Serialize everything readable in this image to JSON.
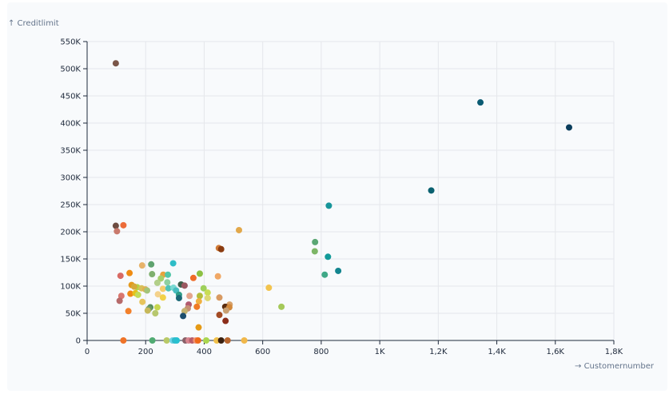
{
  "chart_data": {
    "type": "scatter",
    "title": "",
    "xlabel": "→ Customernumber",
    "ylabel": "↑ Creditlimit",
    "xlim": [
      0,
      1800
    ],
    "ylim": [
      0,
      550000
    ],
    "x_ticks": [
      0,
      200,
      400,
      600,
      800,
      1000,
      1200,
      1400,
      1600,
      1800
    ],
    "x_tick_labels": [
      "0",
      "200",
      "400",
      "600",
      "800",
      "1K",
      "1,2K",
      "1,4K",
      "1,6K",
      "1,8K"
    ],
    "y_ticks": [
      0,
      50000,
      100000,
      150000,
      200000,
      250000,
      300000,
      350000,
      400000,
      450000,
      500000,
      550000
    ],
    "y_tick_labels": [
      "0",
      "50K",
      "100K",
      "150K",
      "200K",
      "250K",
      "300K",
      "350K",
      "400K",
      "450K",
      "500K",
      "550K"
    ],
    "grid": true,
    "points": [
      {
        "x": 98,
        "y": 510000,
        "color": "#795548"
      },
      {
        "x": 1344,
        "y": 438000,
        "color": "#0b5b73"
      },
      {
        "x": 1647,
        "y": 392000,
        "color": "#0a3d5c"
      },
      {
        "x": 1176,
        "y": 276000,
        "color": "#0a6170"
      },
      {
        "x": 826,
        "y": 248000,
        "color": "#17959a"
      },
      {
        "x": 98,
        "y": 211000,
        "color": "#6d4c41"
      },
      {
        "x": 124,
        "y": 212000,
        "color": "#ec6c3a"
      },
      {
        "x": 102,
        "y": 201000,
        "color": "#c97a6d"
      },
      {
        "x": 519,
        "y": 203000,
        "color": "#e2a84a"
      },
      {
        "x": 779,
        "y": 181000,
        "color": "#5aa774"
      },
      {
        "x": 778,
        "y": 164000,
        "color": "#7db667"
      },
      {
        "x": 823,
        "y": 154000,
        "color": "#129a99"
      },
      {
        "x": 450,
        "y": 170000,
        "color": "#d07a36"
      },
      {
        "x": 458,
        "y": 168000,
        "color": "#8a3b10"
      },
      {
        "x": 858,
        "y": 128000,
        "color": "#13858f"
      },
      {
        "x": 812,
        "y": 121000,
        "color": "#3fa887"
      },
      {
        "x": 294,
        "y": 142000,
        "color": "#2fbdc7"
      },
      {
        "x": 219,
        "y": 140000,
        "color": "#5fa36f"
      },
      {
        "x": 188,
        "y": 138000,
        "color": "#e7b36a"
      },
      {
        "x": 114,
        "y": 119000,
        "color": "#d86a64"
      },
      {
        "x": 145,
        "y": 124000,
        "color": "#ef8c12"
      },
      {
        "x": 222,
        "y": 122000,
        "color": "#7fb06f"
      },
      {
        "x": 260,
        "y": 121000,
        "color": "#e8a33d"
      },
      {
        "x": 276,
        "y": 121000,
        "color": "#53c6a8"
      },
      {
        "x": 385,
        "y": 123000,
        "color": "#8cc043"
      },
      {
        "x": 363,
        "y": 115000,
        "color": "#ef6b28"
      },
      {
        "x": 447,
        "y": 118000,
        "color": "#f0a866"
      },
      {
        "x": 252,
        "y": 114000,
        "color": "#a7cf6a"
      },
      {
        "x": 274,
        "y": 107000,
        "color": "#8fd0a0"
      },
      {
        "x": 240,
        "y": 106000,
        "color": "#b2cf8a"
      },
      {
        "x": 152,
        "y": 102000,
        "color": "#e39a1e"
      },
      {
        "x": 171,
        "y": 98000,
        "color": "#b3d446"
      },
      {
        "x": 161,
        "y": 99000,
        "color": "#d6a93a"
      },
      {
        "x": 186,
        "y": 96000,
        "color": "#d8c05a"
      },
      {
        "x": 199,
        "y": 94000,
        "color": "#dfb050"
      },
      {
        "x": 205,
        "y": 92000,
        "color": "#a3c47a"
      },
      {
        "x": 259,
        "y": 95000,
        "color": "#f5cc6d"
      },
      {
        "x": 278,
        "y": 96000,
        "color": "#4fc2b7"
      },
      {
        "x": 295,
        "y": 97000,
        "color": "#7ad9d2"
      },
      {
        "x": 304,
        "y": 92000,
        "color": "#47bdbf"
      },
      {
        "x": 321,
        "y": 103000,
        "color": "#3d5f4a"
      },
      {
        "x": 333,
        "y": 101000,
        "color": "#9a5860"
      },
      {
        "x": 398,
        "y": 96000,
        "color": "#9ed05a"
      },
      {
        "x": 412,
        "y": 88000,
        "color": "#c8dd55"
      },
      {
        "x": 148,
        "y": 86000,
        "color": "#f08a14"
      },
      {
        "x": 165,
        "y": 87000,
        "color": "#e5c21c"
      },
      {
        "x": 174,
        "y": 84000,
        "color": "#c2dc5a"
      },
      {
        "x": 117,
        "y": 82000,
        "color": "#d9776e"
      },
      {
        "x": 242,
        "y": 85000,
        "color": "#f4d28c"
      },
      {
        "x": 259,
        "y": 79000,
        "color": "#f2d148"
      },
      {
        "x": 314,
        "y": 84000,
        "color": "#2f9d88"
      },
      {
        "x": 350,
        "y": 82000,
        "color": "#e4a58c"
      },
      {
        "x": 385,
        "y": 82000,
        "color": "#b3bd3a"
      },
      {
        "x": 412,
        "y": 78000,
        "color": "#ddd872"
      },
      {
        "x": 452,
        "y": 79000,
        "color": "#d89a62"
      },
      {
        "x": 111,
        "y": 73000,
        "color": "#b66a6a"
      },
      {
        "x": 189,
        "y": 71000,
        "color": "#e7c45c"
      },
      {
        "x": 314,
        "y": 78000,
        "color": "#1b6977"
      },
      {
        "x": 382,
        "y": 72000,
        "color": "#f0b042"
      },
      {
        "x": 347,
        "y": 66000,
        "color": "#b15a6e"
      },
      {
        "x": 487,
        "y": 66000,
        "color": "#d7a16a"
      },
      {
        "x": 664,
        "y": 62000,
        "color": "#a5c95a"
      },
      {
        "x": 375,
        "y": 62000,
        "color": "#ef7b26"
      },
      {
        "x": 472,
        "y": 62000,
        "color": "#5b2d0e"
      },
      {
        "x": 486,
        "y": 61000,
        "color": "#d2883a"
      },
      {
        "x": 240,
        "y": 61000,
        "color": "#c6d64e"
      },
      {
        "x": 216,
        "y": 61000,
        "color": "#5a8f5c"
      },
      {
        "x": 211,
        "y": 58000,
        "color": "#6c9a64"
      },
      {
        "x": 207,
        "y": 55000,
        "color": "#c6b85a"
      },
      {
        "x": 344,
        "y": 59000,
        "color": "#c58f73"
      },
      {
        "x": 141,
        "y": 54000,
        "color": "#f2802b"
      },
      {
        "x": 233,
        "y": 50000,
        "color": "#b7c76e"
      },
      {
        "x": 333,
        "y": 54000,
        "color": "#c3b26e"
      },
      {
        "x": 475,
        "y": 55000,
        "color": "#c9a072"
      },
      {
        "x": 452,
        "y": 47000,
        "color": "#a34b24"
      },
      {
        "x": 328,
        "y": 45000,
        "color": "#1d4e6e"
      },
      {
        "x": 473,
        "y": 36000,
        "color": "#8b2d1a"
      },
      {
        "x": 381,
        "y": 24000,
        "color": "#e59a16"
      },
      {
        "x": 621,
        "y": 97000,
        "color": "#f2c44e"
      },
      {
        "x": 124,
        "y": 0,
        "color": "#ef7328"
      },
      {
        "x": 223,
        "y": 0,
        "color": "#51ab73"
      },
      {
        "x": 272,
        "y": 0,
        "color": "#b9c967"
      },
      {
        "x": 292,
        "y": 0,
        "color": "#6fd4e4"
      },
      {
        "x": 300,
        "y": 0,
        "color": "#37b7c9"
      },
      {
        "x": 306,
        "y": 0,
        "color": "#27c0d0"
      },
      {
        "x": 336,
        "y": 0,
        "color": "#8a6068"
      },
      {
        "x": 347,
        "y": 0,
        "color": "#d8848e"
      },
      {
        "x": 359,
        "y": 0,
        "color": "#b85d6a"
      },
      {
        "x": 372,
        "y": 0,
        "color": "#f09070"
      },
      {
        "x": 379,
        "y": 0,
        "color": "#ef6a1a"
      },
      {
        "x": 407,
        "y": 0,
        "color": "#aad64e"
      },
      {
        "x": 443,
        "y": 0,
        "color": "#f0c04a"
      },
      {
        "x": 458,
        "y": 0,
        "color": "#3a2010"
      },
      {
        "x": 480,
        "y": 0,
        "color": "#b8662e"
      },
      {
        "x": 537,
        "y": 0,
        "color": "#f1b84a"
      }
    ]
  }
}
